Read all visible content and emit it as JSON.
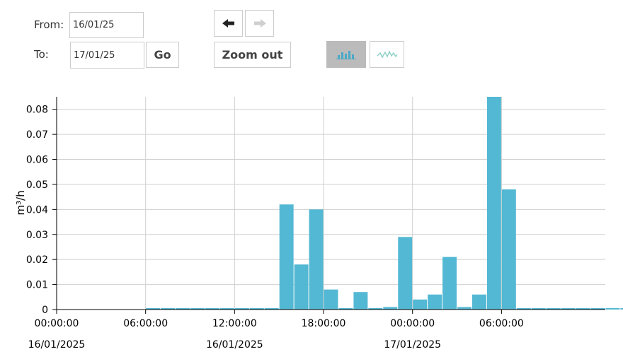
{
  "controls": {
    "from_label": "From:",
    "from_value": "16/01/25",
    "to_label": "To:",
    "to_value": "17/01/25",
    "go_label": "Go",
    "zoom_out_label": "Zoom out",
    "prev_arrow": "🡄",
    "next_arrow": "🡆"
  },
  "chart_data": {
    "type": "bar",
    "title": "",
    "xlabel": "",
    "ylabel": "m³/h",
    "ylim": [
      0,
      0.085
    ],
    "yticks": [
      0,
      0.01,
      0.02,
      0.03,
      0.04,
      0.05,
      0.06,
      0.07,
      0.08
    ],
    "ytick_labels": [
      "0",
      "0.01",
      "0.02",
      "0.03",
      "0.04",
      "0.05",
      "0.06",
      "0.07",
      "0.08"
    ],
    "bar_start_hour": 0,
    "bar_width_hours": 1,
    "values": [
      0,
      0,
      0,
      0,
      0,
      0,
      0,
      0,
      0,
      0.042,
      0.018,
      0.04,
      0.008,
      0,
      0.007,
      0,
      0.001,
      0.029,
      0.004,
      0.006,
      0.021,
      0.001,
      0.006,
      0.086,
      0.048,
      0,
      0,
      0,
      0,
      0,
      0,
      0,
      0,
      0,
      0.008,
      0.001
    ],
    "xlim_hours": [
      -6,
      31
    ],
    "xticks": [
      {
        "hour": -6,
        "time": "00:00:00",
        "date": "16/01/2025"
      },
      {
        "hour": 0,
        "time": "06:00:00",
        "date": ""
      },
      {
        "hour": 6,
        "time": "12:00:00",
        "date": "16/01/2025"
      },
      {
        "hour": 12,
        "time": "18:00:00",
        "date": ""
      },
      {
        "hour": 18,
        "time": "00:00:00",
        "date": "17/01/2025"
      },
      {
        "hour": 24,
        "time": "06:00:00",
        "date": ""
      }
    ],
    "grid": true,
    "bar_color": "#53b8d3",
    "grid_color": "#d0d0d0"
  }
}
